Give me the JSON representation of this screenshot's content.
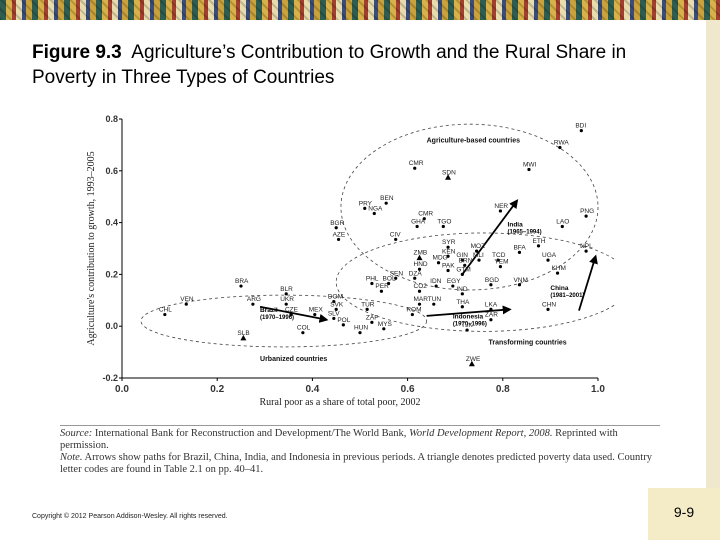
{
  "slide": {
    "title_label": "Figure 9.3",
    "title_text": "Agriculture’s Contribution to Growth and the Rural Share in Poverty in Three Types of Countries",
    "source_label": "Source:",
    "source_text": "International Bank for Reconstruction and Development/The World Bank, ",
    "source_italic": "World Development Report, 2008.",
    "source_tail": " Reprinted with permission.",
    "note_label": "Note.",
    "note_text": "Arrows show paths for Brazil, China, India, and Indonesia in previous periods. A triangle denotes predicted poverty data used. Country letter codes are found in Table 2.1 on pp. 40–41.",
    "copyright": "Copyright © 2012 Pearson Addison-Wesley. All rights reserved.",
    "page_number": "9-9"
  },
  "chart_data": {
    "type": "scatter",
    "xlabel": "Rural poor as a share of total poor, 2002",
    "ylabel": "Agriculture's contribution to growth, 1993–2005",
    "xlim": [
      0.0,
      1.0
    ],
    "ylim": [
      -0.2,
      0.8
    ],
    "xticks": [
      "0.0",
      "0.2",
      "0.4",
      "0.6",
      "0.8",
      "1.0"
    ],
    "yticks": [
      "-0.2",
      "0.0",
      "0.2",
      "0.4",
      "0.6",
      "0.8"
    ],
    "grid": false,
    "groups": [
      {
        "name": "Agriculture-based countries",
        "cx": 0.73,
        "cy": 0.46,
        "rx": 0.27,
        "ry": 0.32,
        "label_x": 0.64,
        "label_y": 0.71
      },
      {
        "name": "Transforming countries",
        "cx": 0.76,
        "cy": 0.17,
        "rx": 0.31,
        "ry": 0.19,
        "label_x": 0.77,
        "label_y": -0.07
      },
      {
        "name": "Urbanized countries",
        "cx": 0.34,
        "cy": 0.02,
        "rx": 0.3,
        "ry": 0.1,
        "label_x": 0.29,
        "label_y": -0.135
      }
    ],
    "points": [
      {
        "code": "BDI",
        "x": 0.965,
        "y": 0.755,
        "triangle": false
      },
      {
        "code": "RWA",
        "x": 0.92,
        "y": 0.69,
        "triangle": false
      },
      {
        "code": "MWI",
        "x": 0.855,
        "y": 0.605,
        "triangle": false
      },
      {
        "code": "CMR",
        "x": 0.615,
        "y": 0.61,
        "triangle": false
      },
      {
        "code": "SDN",
        "x": 0.685,
        "y": 0.575,
        "triangle": true
      },
      {
        "code": "BEN",
        "x": 0.555,
        "y": 0.475,
        "triangle": false
      },
      {
        "code": "PRY",
        "x": 0.51,
        "y": 0.455,
        "triangle": false
      },
      {
        "code": "NGA",
        "x": 0.53,
        "y": 0.435,
        "triangle": false
      },
      {
        "code": "NER",
        "x": 0.795,
        "y": 0.445,
        "triangle": false
      },
      {
        "code": "PNG",
        "x": 0.975,
        "y": 0.425,
        "triangle": false
      },
      {
        "code": "LAO",
        "x": 0.925,
        "y": 0.385,
        "triangle": false
      },
      {
        "code": "CMR",
        "x": 0.635,
        "y": 0.415,
        "triangle": false
      },
      {
        "code": "GHA",
        "x": 0.62,
        "y": 0.385,
        "triangle": false
      },
      {
        "code": "TGO",
        "x": 0.675,
        "y": 0.385,
        "triangle": false
      },
      {
        "code": "BGR",
        "x": 0.45,
        "y": 0.38,
        "triangle": false
      },
      {
        "code": "AZE",
        "x": 0.455,
        "y": 0.335,
        "triangle": false
      },
      {
        "code": "CIV",
        "x": 0.575,
        "y": 0.335,
        "triangle": false
      },
      {
        "code": "SYR",
        "x": 0.685,
        "y": 0.305,
        "triangle": false
      },
      {
        "code": "ETH",
        "x": 0.875,
        "y": 0.31,
        "triangle": false
      },
      {
        "code": "MOZ",
        "x": 0.745,
        "y": 0.29,
        "triangle": false
      },
      {
        "code": "BFA",
        "x": 0.835,
        "y": 0.285,
        "triangle": false
      },
      {
        "code": "NPL",
        "x": 0.975,
        "y": 0.29,
        "triangle": false
      },
      {
        "code": "ZMB",
        "x": 0.625,
        "y": 0.265,
        "triangle": true
      },
      {
        "code": "KEN",
        "x": 0.685,
        "y": 0.27,
        "triangle": false
      },
      {
        "code": "GIN",
        "x": 0.715,
        "y": 0.255,
        "triangle": false
      },
      {
        "code": "MLI",
        "x": 0.75,
        "y": 0.255,
        "triangle": false
      },
      {
        "code": "TCD",
        "x": 0.79,
        "y": 0.255,
        "triangle": false
      },
      {
        "code": "UGA",
        "x": 0.895,
        "y": 0.255,
        "triangle": false
      },
      {
        "code": "MDG",
        "x": 0.665,
        "y": 0.245,
        "triangle": false
      },
      {
        "code": "BRN",
        "x": 0.72,
        "y": 0.235,
        "triangle": false
      },
      {
        "code": "YEM",
        "x": 0.795,
        "y": 0.23,
        "triangle": false
      },
      {
        "code": "HND",
        "x": 0.625,
        "y": 0.22,
        "triangle": false
      },
      {
        "code": "PAK",
        "x": 0.685,
        "y": 0.215,
        "triangle": false
      },
      {
        "code": "KHM",
        "x": 0.915,
        "y": 0.205,
        "triangle": false
      },
      {
        "code": "GTM",
        "x": 0.715,
        "y": 0.2,
        "triangle": false
      },
      {
        "code": "SEN",
        "x": 0.575,
        "y": 0.185,
        "triangle": false
      },
      {
        "code": "DZA",
        "x": 0.615,
        "y": 0.185,
        "triangle": false
      },
      {
        "code": "BRA",
        "x": 0.25,
        "y": 0.155,
        "triangle": false
      },
      {
        "code": "PHL",
        "x": 0.525,
        "y": 0.165,
        "triangle": false
      },
      {
        "code": "BOL",
        "x": 0.56,
        "y": 0.165,
        "triangle": false
      },
      {
        "code": "IDN",
        "x": 0.66,
        "y": 0.155,
        "triangle": false
      },
      {
        "code": "EGY",
        "x": 0.695,
        "y": 0.155,
        "triangle": false
      },
      {
        "code": "BGD",
        "x": 0.775,
        "y": 0.16,
        "triangle": false
      },
      {
        "code": "VNM",
        "x": 0.835,
        "y": 0.16,
        "triangle": false
      },
      {
        "code": "PER",
        "x": 0.545,
        "y": 0.135,
        "triangle": false
      },
      {
        "code": "CO2",
        "x": 0.625,
        "y": 0.135,
        "triangle": false
      },
      {
        "code": "IND",
        "x": 0.715,
        "y": 0.125,
        "triangle": false
      },
      {
        "code": "BLR",
        "x": 0.345,
        "y": 0.125,
        "triangle": false
      },
      {
        "code": "VEN",
        "x": 0.135,
        "y": 0.085,
        "triangle": false
      },
      {
        "code": "ARG",
        "x": 0.275,
        "y": 0.085,
        "triangle": false
      },
      {
        "code": "UKR",
        "x": 0.345,
        "y": 0.085,
        "triangle": false
      },
      {
        "code": "DOM",
        "x": 0.445,
        "y": 0.095,
        "triangle": false
      },
      {
        "code": "MAR",
        "x": 0.625,
        "y": 0.085,
        "triangle": false
      },
      {
        "code": "TUN",
        "x": 0.655,
        "y": 0.085,
        "triangle": false
      },
      {
        "code": "THA",
        "x": 0.715,
        "y": 0.075,
        "triangle": false
      },
      {
        "code": "LKA",
        "x": 0.775,
        "y": 0.065,
        "triangle": false
      },
      {
        "code": "CHN",
        "x": 0.895,
        "y": 0.065,
        "triangle": false
      },
      {
        "code": "CHL",
        "x": 0.09,
        "y": 0.045,
        "triangle": false
      },
      {
        "code": "CZE",
        "x": 0.355,
        "y": 0.045,
        "triangle": false
      },
      {
        "code": "MEX",
        "x": 0.405,
        "y": 0.045,
        "triangle": false
      },
      {
        "code": "SVK",
        "x": 0.45,
        "y": 0.065,
        "triangle": false
      },
      {
        "code": "TUR",
        "x": 0.515,
        "y": 0.065,
        "triangle": false
      },
      {
        "code": "ROM",
        "x": 0.61,
        "y": 0.045,
        "triangle": false
      },
      {
        "code": "SLV",
        "x": 0.445,
        "y": 0.03,
        "triangle": false
      },
      {
        "code": "POL",
        "x": 0.465,
        "y": 0.005,
        "triangle": false
      },
      {
        "code": "ZAF",
        "x": 0.525,
        "y": 0.015,
        "triangle": false
      },
      {
        "code": "ZAR",
        "x": 0.775,
        "y": 0.025,
        "triangle": false
      },
      {
        "code": "TJK",
        "x": 0.725,
        "y": -0.015,
        "triangle": false
      },
      {
        "code": "MYS",
        "x": 0.55,
        "y": -0.01,
        "triangle": false
      },
      {
        "code": "HUN",
        "x": 0.5,
        "y": -0.025,
        "triangle": false
      },
      {
        "code": "COL",
        "x": 0.38,
        "y": -0.025,
        "triangle": false
      },
      {
        "code": "SLB",
        "x": 0.255,
        "y": -0.045,
        "triangle": true
      },
      {
        "code": "ZWE",
        "x": 0.735,
        "y": -0.145,
        "triangle": true
      }
    ],
    "paths": [
      {
        "label": "India",
        "period": "(1965–1994)",
        "from": [
          0.715,
          0.2
        ],
        "to": [
          0.83,
          0.485
        ],
        "label_x": 0.81,
        "label_y": 0.385
      },
      {
        "label": "China",
        "period": "(1981–2001)",
        "from": [
          0.96,
          0.06
        ],
        "to": [
          0.995,
          0.27
        ],
        "label_x": 0.9,
        "label_y": 0.14
      },
      {
        "label": "Brazil",
        "period": "(1970–1996)",
        "from": [
          0.29,
          0.075
        ],
        "to": [
          0.43,
          0.025
        ],
        "label_x": 0.29,
        "label_y": 0.055
      },
      {
        "label": "Indonesia",
        "period": "(1970–1996)",
        "from": [
          0.64,
          0.04
        ],
        "to": [
          0.815,
          0.065
        ],
        "label_x": 0.695,
        "label_y": 0.03
      }
    ]
  }
}
